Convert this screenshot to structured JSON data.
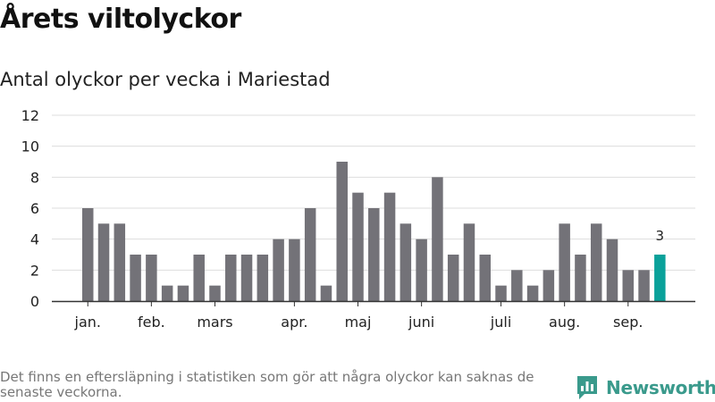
{
  "header": {
    "title": "Årets viltolyckor",
    "subtitle": "Antal olyckor per vecka i Mariestad"
  },
  "footer": {
    "note": "Det finns en eftersläpning i statistiken som gör att några olyckor kan saknas de senaste veckorna.",
    "brand": "Newsworthy",
    "brand_icon": "bar-chart-speech-icon"
  },
  "colors": {
    "bar": "#737278",
    "highlight": "#0aa19a",
    "grid": "#dddddd",
    "axis": "#333333",
    "brand": "#3a9a8c"
  },
  "chart_data": {
    "type": "bar",
    "title": "Antal olyckor per vecka i Mariestad",
    "xlabel": "",
    "ylabel": "",
    "ylim": [
      0,
      12
    ],
    "yticks": [
      0,
      2,
      4,
      6,
      8,
      10,
      12
    ],
    "grid": true,
    "values": [
      6,
      5,
      5,
      3,
      3,
      1,
      1,
      3,
      1,
      3,
      3,
      3,
      4,
      4,
      6,
      1,
      9,
      7,
      6,
      7,
      5,
      4,
      8,
      3,
      5,
      3,
      1,
      2,
      1,
      2,
      5,
      3,
      5,
      4,
      2,
      2,
      3
    ],
    "month_labels": [
      {
        "label": "jan.",
        "index": 0
      },
      {
        "label": "feb.",
        "index": 4
      },
      {
        "label": "mars",
        "index": 8
      },
      {
        "label": "apr.",
        "index": 13
      },
      {
        "label": "maj",
        "index": 17
      },
      {
        "label": "juni",
        "index": 21
      },
      {
        "label": "juli",
        "index": 26
      },
      {
        "label": "aug.",
        "index": 30
      },
      {
        "label": "sep.",
        "index": 34
      }
    ],
    "highlight_index": 36,
    "annotations": [
      {
        "index": 36,
        "text": "3"
      }
    ]
  }
}
